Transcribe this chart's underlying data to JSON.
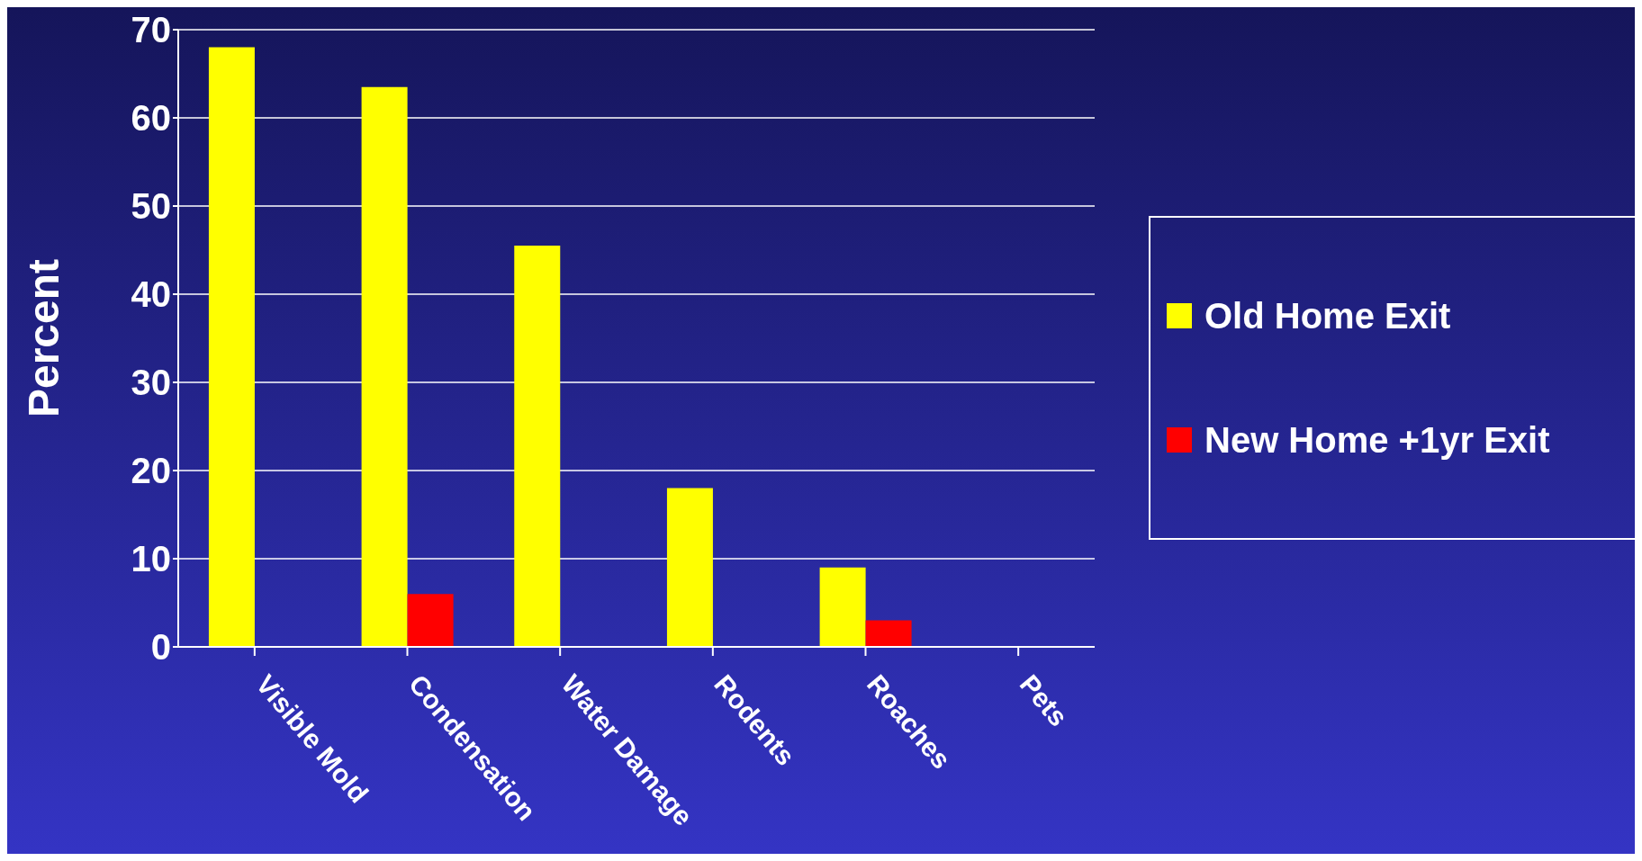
{
  "chart_data": {
    "type": "bar",
    "ylabel": "Percent",
    "categories": [
      "Visible Mold",
      "Condensation",
      "Water Damage",
      "Rodents",
      "Roaches",
      "Pets"
    ],
    "series": [
      {
        "name": "Old Home Exit",
        "color": "#ffff00",
        "values": [
          68,
          63.5,
          45.5,
          18,
          9,
          0
        ]
      },
      {
        "name": "New Home +1yr Exit",
        "color": "#ff0000",
        "values": [
          0,
          6,
          0,
          0,
          3,
          0
        ]
      }
    ],
    "ylim": [
      0,
      70
    ],
    "yticks": [
      0,
      10,
      20,
      30,
      40,
      50,
      60,
      70
    ],
    "grid": "y",
    "legend": "right"
  }
}
